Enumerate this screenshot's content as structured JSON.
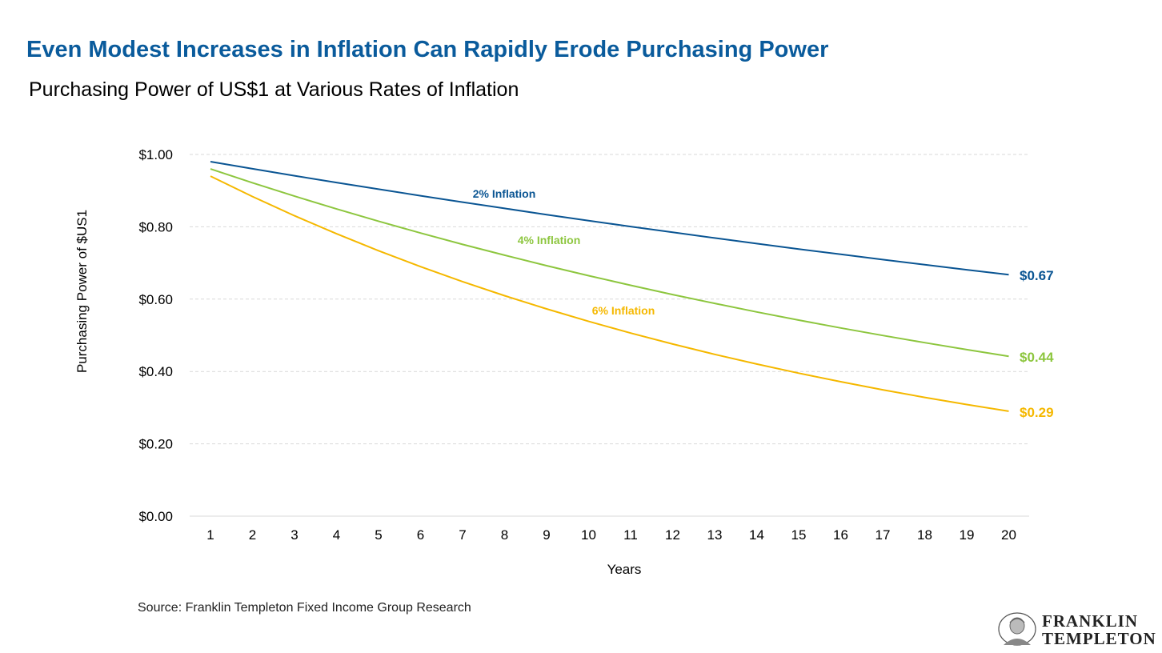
{
  "header": {
    "title": "Even Modest Increases in Inflation Can Rapidly Erode Purchasing Power",
    "subtitle": "Purchasing Power of US$1 at Various Rates of Inflation"
  },
  "chart_data": {
    "type": "line",
    "title": "Purchasing Power of US$1 at Various Rates of Inflation",
    "xlabel": "Years",
    "ylabel": "Purchasing Power of $US1",
    "x": [
      1,
      2,
      3,
      4,
      5,
      6,
      7,
      8,
      9,
      10,
      11,
      12,
      13,
      14,
      15,
      16,
      17,
      18,
      19,
      20
    ],
    "ylim": [
      0,
      1.0
    ],
    "yticks": [
      0,
      0.2,
      0.4,
      0.6,
      0.8,
      1.0
    ],
    "ytick_labels": [
      "$0.00",
      "$0.20",
      "$0.40",
      "$0.60",
      "$0.80",
      "$1.00"
    ],
    "grid": "horizontal dashed",
    "series": [
      {
        "name": "2% Inflation",
        "color": "#0a5593",
        "end_label": "$0.67",
        "values": [
          0.98,
          0.9604,
          0.9412,
          0.9224,
          0.9039,
          0.8858,
          0.8681,
          0.8508,
          0.8337,
          0.8171,
          0.8007,
          0.7847,
          0.769,
          0.7536,
          0.7386,
          0.7238,
          0.7093,
          0.6951,
          0.6812,
          0.6676
        ]
      },
      {
        "name": "4% Inflation",
        "color": "#8dc63f",
        "end_label": "$0.44",
        "values": [
          0.96,
          0.9216,
          0.8847,
          0.8493,
          0.8154,
          0.7828,
          0.7514,
          0.7214,
          0.6925,
          0.6648,
          0.6382,
          0.6127,
          0.5882,
          0.5647,
          0.5421,
          0.5204,
          0.4996,
          0.4796,
          0.4604,
          0.442
        ]
      },
      {
        "name": "6% Inflation",
        "color": "#f5b800",
        "end_label": "$0.29",
        "values": [
          0.94,
          0.8836,
          0.8306,
          0.7807,
          0.7339,
          0.6899,
          0.6485,
          0.6096,
          0.573,
          0.5386,
          0.5063,
          0.4759,
          0.4474,
          0.4205,
          0.3953,
          0.3716,
          0.3493,
          0.3283,
          0.3086,
          0.2901
        ]
      }
    ]
  },
  "footer": {
    "source": "Source: Franklin Templeton Fixed Income Group Research"
  },
  "logo": {
    "line1": "FRANKLIN",
    "line2": "TEMPLETON"
  }
}
